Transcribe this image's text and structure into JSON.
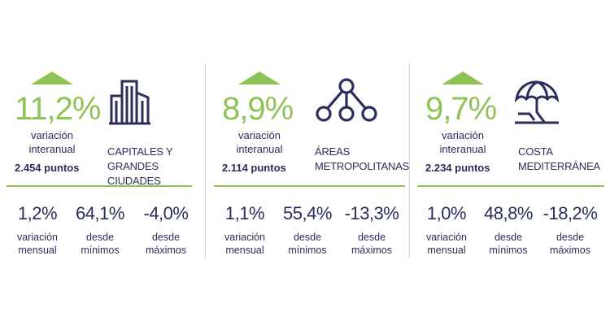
{
  "colors": {
    "accent": "#8fc356",
    "text": "#2b2d5c",
    "separator": "#d2d3db"
  },
  "panels": [
    {
      "icon": "city-buildings-icon",
      "pct": "11,2%",
      "pct_label_1": "variación",
      "pct_label_2": "interanual",
      "points": "2.454 puntos",
      "category_1": "CAPITALES Y",
      "category_2": "GRANDES CIUDADES",
      "stats": [
        {
          "value": "1,2%",
          "label_1": "variación",
          "label_2": "mensual"
        },
        {
          "value": "64,1%",
          "label_1": "desde",
          "label_2": "mínimos"
        },
        {
          "value": "-4,0%",
          "label_1": "desde",
          "label_2": "máximos"
        }
      ]
    },
    {
      "icon": "network-nodes-icon",
      "pct": "8,9%",
      "pct_label_1": "variación",
      "pct_label_2": "interanual",
      "points": "2.114 puntos",
      "category_1": "ÁREAS",
      "category_2": "METROPOLITANAS",
      "stats": [
        {
          "value": "1,1%",
          "label_1": "variación",
          "label_2": "mensual"
        },
        {
          "value": "55,4%",
          "label_1": "desde",
          "label_2": "mínimos"
        },
        {
          "value": "-13,3%",
          "label_1": "desde",
          "label_2": "máximos"
        }
      ]
    },
    {
      "icon": "beach-umbrella-icon",
      "pct": "9,7%",
      "pct_label_1": "variación",
      "pct_label_2": "interanual",
      "points": "2.234 puntos",
      "category_1": "COSTA",
      "category_2": "MEDITERRÁNEA",
      "stats": [
        {
          "value": "1,0%",
          "label_1": "variación",
          "label_2": "mensual"
        },
        {
          "value": "48,8%",
          "label_1": "desde",
          "label_2": "mínimos"
        },
        {
          "value": "-18,2%",
          "label_1": "desde",
          "label_2": "máximos"
        }
      ]
    }
  ]
}
